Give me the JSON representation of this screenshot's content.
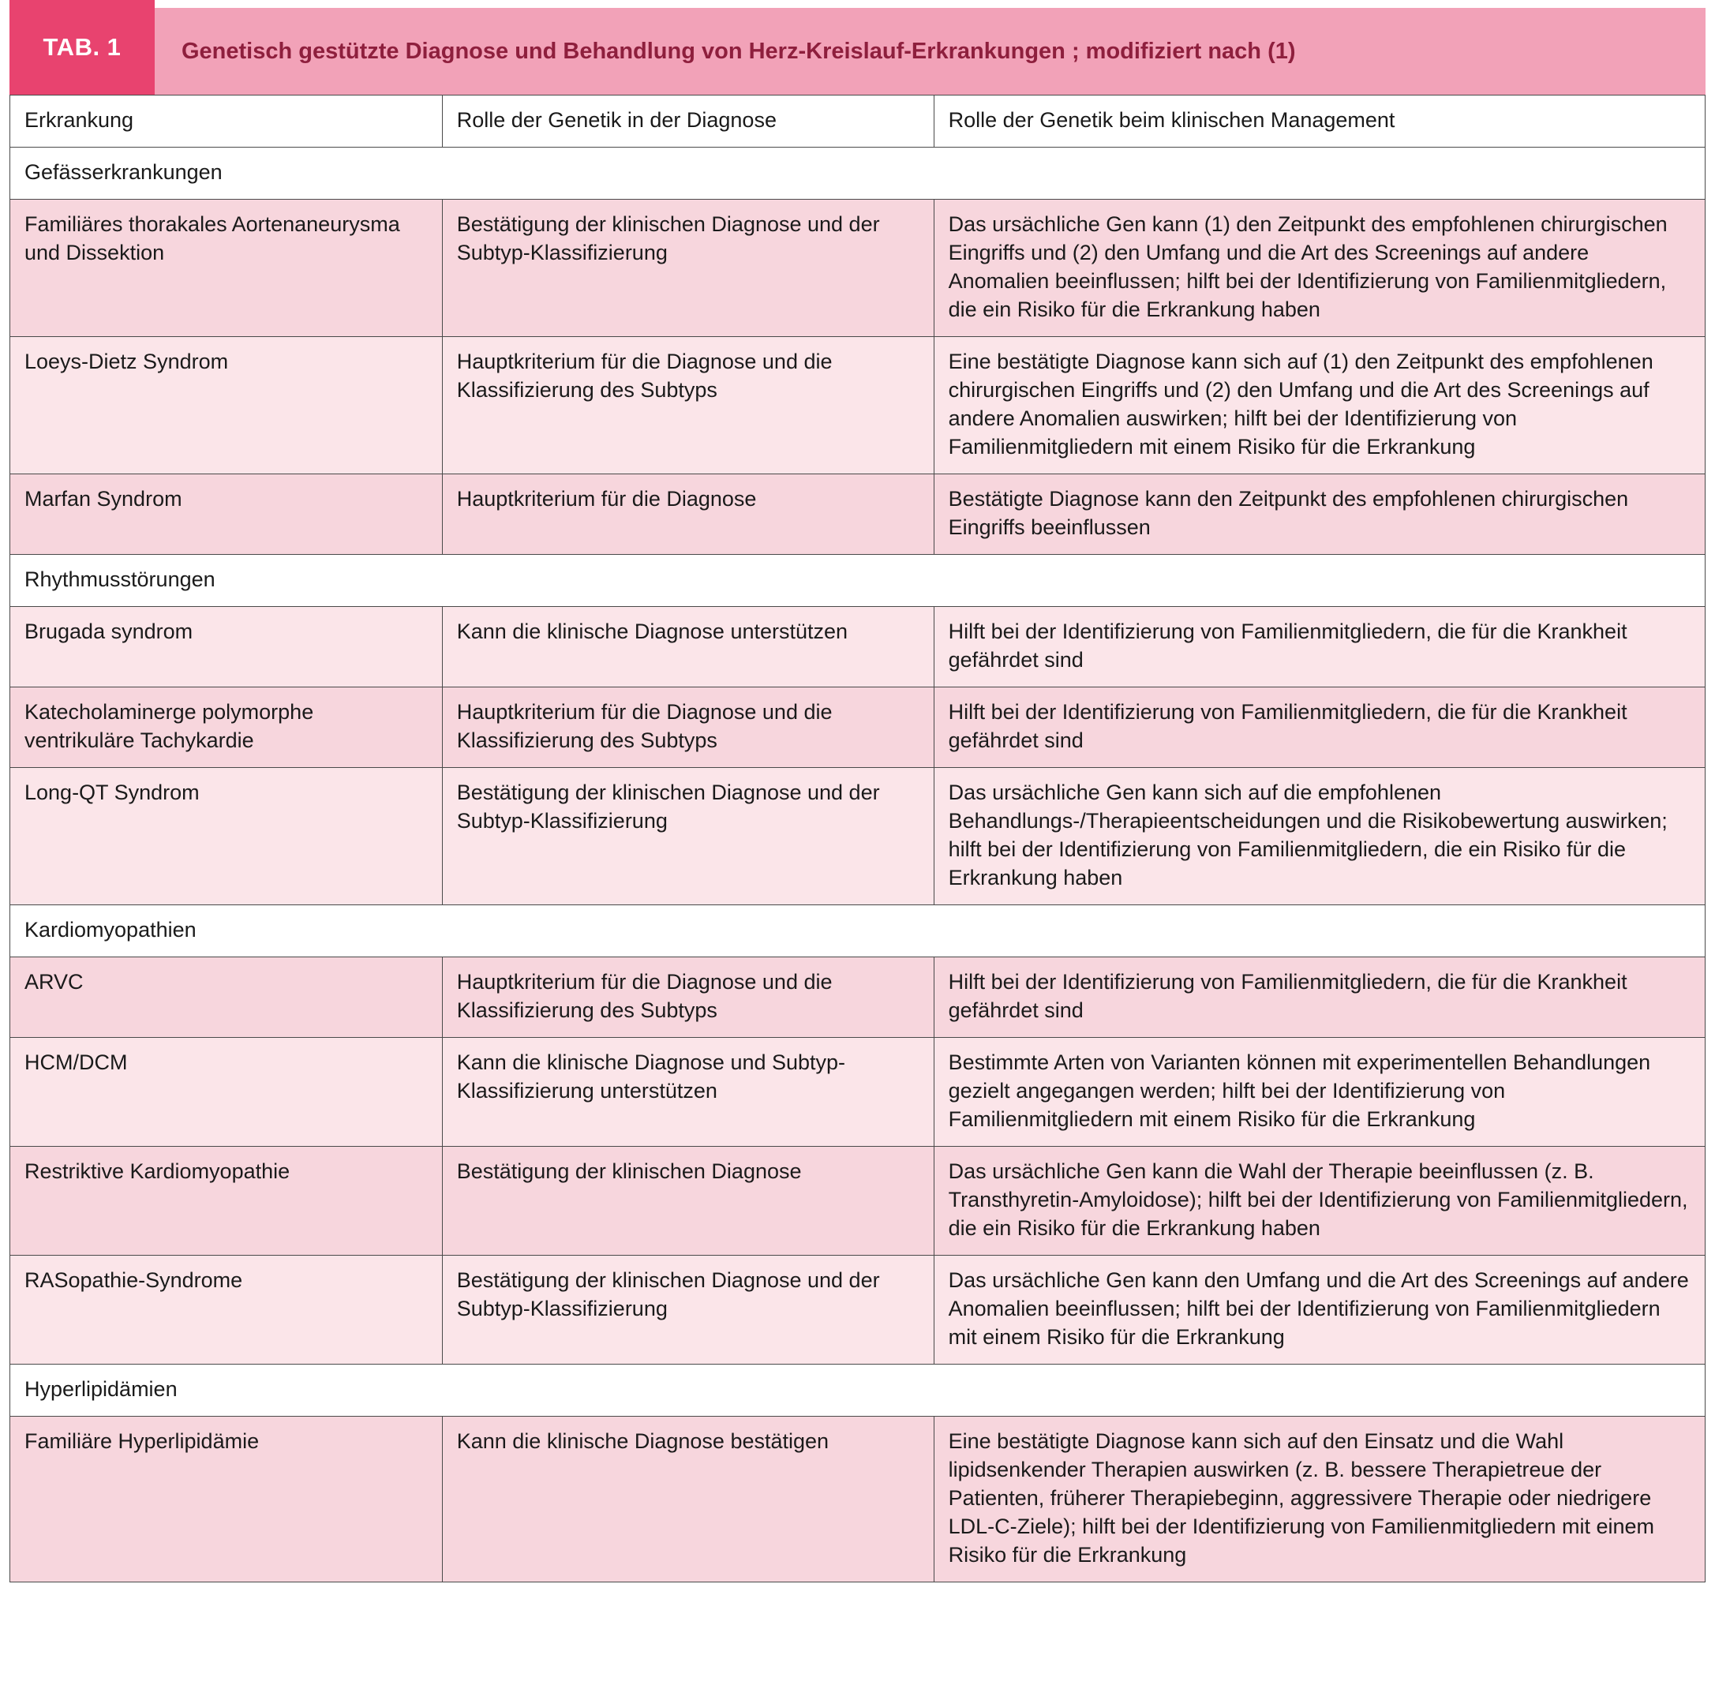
{
  "header": {
    "tab_label": "TAB. 1",
    "title": "Genetisch gestützte Diagnose und Behandlung von Herz-Kreislauf-Erkrankungen ; modifiziert nach (1)"
  },
  "colors": {
    "tab_box": "#e8436f",
    "band": "#f2a2b8",
    "title_text": "#8e1f3d",
    "row_pink_dark": "#f7d6dd",
    "row_pink_light": "#fbe5e9",
    "grid_border": "#4a4a4a"
  },
  "table": {
    "columns": [
      "Erkrankung",
      "Rolle der Genetik in der Diagnose",
      "Rolle der Genetik beim klinischen Management"
    ],
    "sections": [
      {
        "title": "Gefässerkrankungen",
        "rows": [
          {
            "cells": [
              "Familiäres thorakales Aortenaneurysma und Dissektion",
              "Bestätigung der klinischen Diagnose und der Subtyp-Klassifizierung",
              "Das ursächliche Gen kann (1) den Zeitpunkt des empfohlenen chirurgischen Eingriffs und (2) den Umfang und die Art des Screenings auf andere Anomalien beeinflussen; hilft bei der Identifizierung von Familienmitgliedern, die ein Risiko für die Erkrankung haben"
            ]
          },
          {
            "cells": [
              "Loeys-Dietz Syndrom",
              "Hauptkriterium für die Diagnose und die Klassifizierung des Subtyps",
              "Eine bestätigte Diagnose kann sich auf (1) den Zeitpunkt des empfohlenen chirurgischen Eingriffs und (2) den Umfang und die Art des Screenings auf andere Anomalien auswirken; hilft bei der Identifizierung von Familienmitgliedern mit einem Risiko für die Erkrankung"
            ]
          },
          {
            "cells": [
              "Marfan Syndrom",
              "Hauptkriterium für die Diagnose",
              "Bestätigte Diagnose kann den Zeitpunkt des empfohlenen chirurgischen Eingriffs beeinflussen"
            ]
          }
        ]
      },
      {
        "title": "Rhythmusstörungen",
        "rows": [
          {
            "cells": [
              "Brugada syndrom",
              "Kann die klinische Diagnose unterstützen",
              "Hilft bei der Identifizierung von Familienmitgliedern, die für die Krankheit gefährdet sind"
            ]
          },
          {
            "cells": [
              "Katecholaminerge polymorphe ventrikuläre Tachykardie",
              "Hauptkriterium für die Diagnose und die Klassifizierung des Subtyps",
              "Hilft bei der Identifizierung von Familienmitgliedern, die für die Krankheit gefährdet sind"
            ]
          },
          {
            "cells": [
              "Long-QT Syndrom",
              "Bestätigung der klinischen Diagnose und der Subtyp-Klassifizierung",
              "Das ursächliche Gen kann sich auf die empfohlenen Behandlungs-/Therapieentscheidungen und die Risikobewertung auswirken; hilft bei der Identifizierung von Familienmitgliedern, die ein Risiko für die Erkrankung haben"
            ]
          }
        ]
      },
      {
        "title": "Kardiomyopathien",
        "rows": [
          {
            "cells": [
              "ARVC",
              "Hauptkriterium für die Diagnose und die Klassifizierung des Subtyps",
              "Hilft bei der Identifizierung von Familienmitgliedern, die für die Krankheit gefährdet sind"
            ]
          },
          {
            "cells": [
              "HCM/DCM",
              "Kann die klinische Diagnose und Subtyp-Klassifizierung unterstützen",
              "Bestimmte Arten von Varianten können mit experimentellen Behandlungen gezielt angegangen werden; hilft bei der Identifizierung von Familienmitgliedern mit einem Risiko für die Erkrankung"
            ]
          },
          {
            "cells": [
              "Restriktive Kardiomyopathie",
              "Bestätigung der klinischen Diagnose",
              "Das ursächliche Gen kann die Wahl der Therapie beeinflussen (z. B. Transthyretin-Amyloidose); hilft bei der Identifizierung von Familienmitgliedern, die ein Risiko für die Erkrankung haben"
            ]
          },
          {
            "cells": [
              "RASopathie-Syndrome",
              "Bestätigung der klinischen Diagnose und der Subtyp-Klassifizierung",
              "Das ursächliche Gen kann den Umfang und die Art des Screenings auf andere Anomalien beeinflussen; hilft bei der Identifizierung von Familienmitgliedern mit einem Risiko für die Erkrankung"
            ]
          }
        ]
      },
      {
        "title": "Hyperlipidämien",
        "rows": [
          {
            "cells": [
              "Familiäre Hyperlipidämie",
              "Kann die klinische Diagnose bestätigen",
              "Eine bestätigte Diagnose kann sich auf den Einsatz und die Wahl lipidsenkender Therapien auswirken (z. B. bessere Therapietreue der Patienten, früherer Therapiebeginn, aggressivere Therapie oder niedrigere LDL-C-Ziele); hilft bei der Identifizierung von Familienmitgliedern mit einem Risiko für die Erkrankung"
            ]
          }
        ]
      }
    ]
  }
}
